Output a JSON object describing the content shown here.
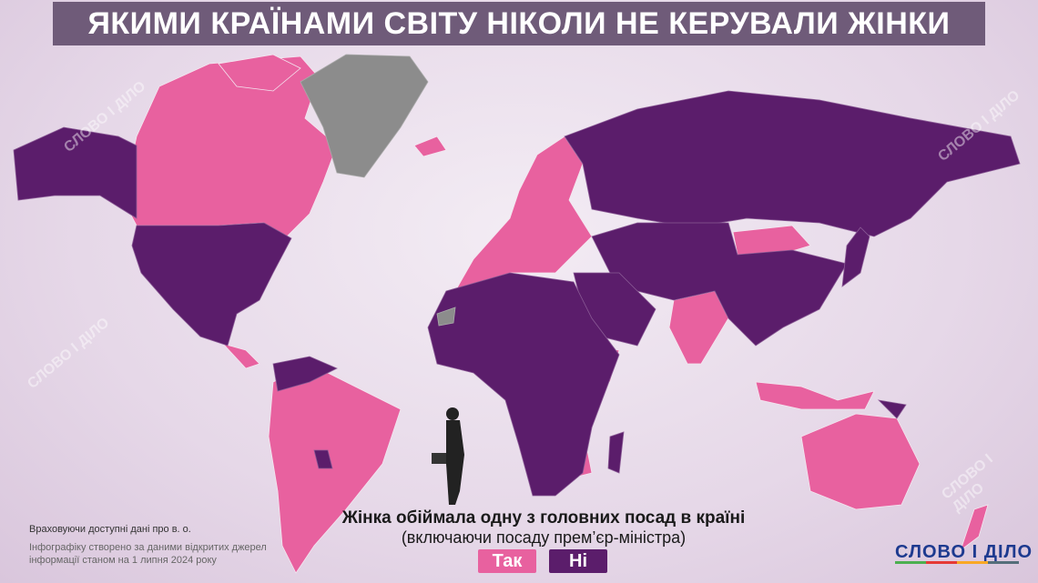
{
  "header": {
    "title": "ЯКИМИ КРАЇНАМИ СВІТУ НІКОЛИ НЕ КЕРУВАЛИ ЖІНКИ"
  },
  "legend": {
    "title": "Жінка обіймала одну з головних посад в країні",
    "subtitle": "(включаючи посаду прем’єр-міністра)",
    "yes_label": "Так",
    "no_label": "Ні",
    "yes_color": "#e8619f",
    "no_color": "#5b1d6b",
    "no_data_color": "#8c8c8c"
  },
  "notes": {
    "acting": "Враховуючи доступні дані про в. о.",
    "source_line1": "Інфографіку створено за даними відкритих джерел",
    "source_line2": "інформації станом на 1 липня 2024 року"
  },
  "logo": {
    "text": "СЛОВО І ДІЛО"
  },
  "watermark": "СЛОВО І ДІЛО"
}
